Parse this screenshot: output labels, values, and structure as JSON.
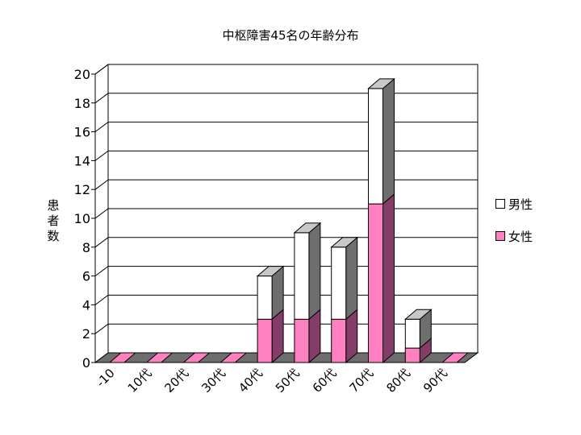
{
  "chart_data": {
    "type": "bar",
    "stacked": true,
    "three_d": true,
    "title": "中枢障害45名の年齢分布",
    "ylabel_chars": [
      "患",
      "者",
      "数"
    ],
    "categories": [
      "-10",
      "10代",
      "20代",
      "30代",
      "40代",
      "50代",
      "60代",
      "70代",
      "80代",
      "90代"
    ],
    "series": [
      {
        "name": "女性",
        "color": "#ff80c0",
        "values": [
          0,
          0,
          0,
          0,
          3,
          3,
          3,
          11,
          1,
          0
        ]
      },
      {
        "name": "男性",
        "color": "#ffffff",
        "values": [
          0,
          0,
          0,
          0,
          3,
          6,
          5,
          8,
          2,
          0
        ]
      }
    ],
    "ylim": [
      0,
      20
    ],
    "yticks": [
      0,
      2,
      4,
      6,
      8,
      10,
      12,
      14,
      16,
      18,
      20
    ],
    "grid": true,
    "legend_position": "right",
    "legend_order": [
      "男性",
      "女性"
    ]
  }
}
